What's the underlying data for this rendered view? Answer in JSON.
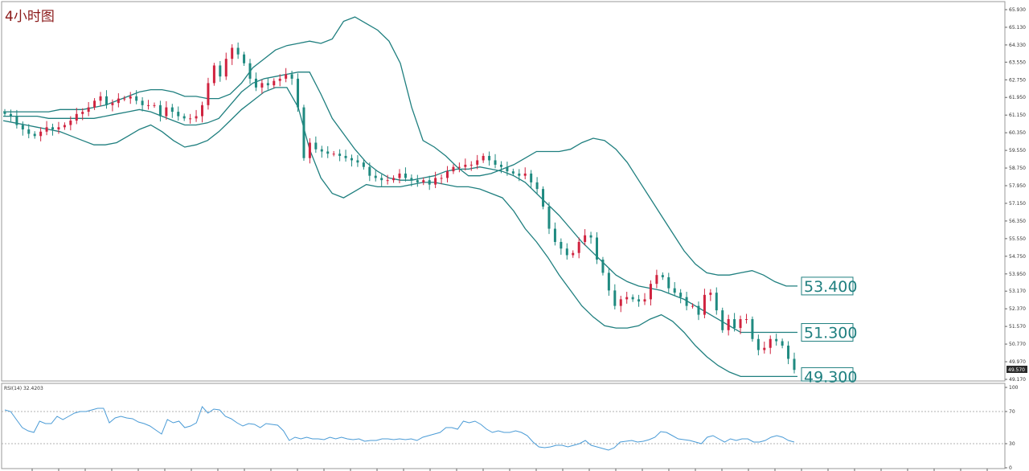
{
  "colors": {
    "up": "#d0233f",
    "down": "#1f8a80",
    "band": "#1f7f7f",
    "rsi": "#4a9bd6",
    "price_tag": "#2b2b2b",
    "level_text": "#1f7f7f"
  },
  "chart_data": {
    "type": "candlestick",
    "title": "4小时图",
    "current_price": "49.570",
    "price_ylim": [
      49.17,
      65.93
    ],
    "price_ticks": [
      "65.930",
      "65.130",
      "64.330",
      "63.550",
      "62.750",
      "61.950",
      "61.150",
      "60.350",
      "59.550",
      "58.750",
      "57.950",
      "57.150",
      "56.350",
      "55.550",
      "54.750",
      "53.950",
      "53.170",
      "52.370",
      "51.570",
      "50.770",
      "49.970",
      "49.170"
    ],
    "levels": [
      "53.400",
      "51.300",
      "49.300"
    ],
    "level_values": [
      53.4,
      51.3,
      49.3
    ],
    "ohlc_closes": [
      61.2,
      61.1,
      60.7,
      60.5,
      60.3,
      60.2,
      60.4,
      60.6,
      60.5,
      60.6,
      60.7,
      60.9,
      61.2,
      61.3,
      61.5,
      61.8,
      62.0,
      61.6,
      61.7,
      61.9,
      61.9,
      62.0,
      61.8,
      61.6,
      61.6,
      61.6,
      61.1,
      61.5,
      61.3,
      61.1,
      61.0,
      61.0,
      61.1,
      61.6,
      62.6,
      63.4,
      62.9,
      63.7,
      64.2,
      63.9,
      63.5,
      62.8,
      62.4,
      62.6,
      62.5,
      62.7,
      62.8,
      63.0,
      62.8,
      61.5,
      59.2,
      59.9,
      59.6,
      59.5,
      59.4,
      59.4,
      59.3,
      59.2,
      59.1,
      59.0,
      58.8,
      58.4,
      58.3,
      58.2,
      58.2,
      58.3,
      58.5,
      58.3,
      58.2,
      58.1,
      58.2,
      58.0,
      58.3,
      58.3,
      58.6,
      58.8,
      58.8,
      58.9,
      58.9,
      59.1,
      59.3,
      59.1,
      58.9,
      58.8,
      58.6,
      58.5,
      58.4,
      58.5,
      58.1,
      57.8,
      57.0,
      56.0,
      55.4,
      55.1,
      54.8,
      54.9,
      55.4,
      55.7,
      55.6,
      54.6,
      54.0,
      53.2,
      52.5,
      52.8,
      52.9,
      52.8,
      52.7,
      52.8,
      53.5,
      53.9,
      53.8,
      53.3,
      53.1,
      52.9,
      52.5,
      52.5,
      52.1,
      53.0,
      53.1,
      52.3,
      51.4,
      51.9,
      51.5,
      51.9,
      51.9,
      51.0,
      50.5,
      50.6,
      51.0,
      50.9,
      50.7,
      50.1,
      49.6
    ],
    "bands_upper": [
      61.3,
      61.3,
      61.3,
      61.3,
      61.3,
      61.4,
      61.4,
      61.4,
      61.5,
      61.6,
      61.8,
      62.0,
      62.2,
      62.3,
      62.3,
      62.2,
      62.0,
      62.0,
      61.9,
      61.9,
      62.1,
      62.6,
      63.3,
      63.7,
      64.1,
      64.3,
      64.4,
      64.5,
      64.4,
      64.6,
      65.4,
      65.6,
      65.3,
      65.0,
      64.5,
      63.5,
      61.5,
      60.0,
      59.7,
      59.3,
      58.8,
      58.4,
      58.4,
      58.5,
      58.7,
      58.9,
      59.2,
      59.5,
      59.5,
      59.5,
      59.6,
      59.9,
      60.1,
      60.0,
      59.6,
      59.0,
      58.2,
      57.4,
      56.6,
      55.8,
      55.0,
      54.4,
      54.0,
      53.9,
      53.9,
      54.0,
      54.1,
      53.9,
      53.6,
      53.4,
      53.4
    ],
    "bands_middle": [
      61.1,
      61.1,
      61.1,
      61.1,
      61.0,
      61.0,
      61.0,
      61.0,
      61.0,
      61.1,
      61.2,
      61.3,
      61.4,
      61.3,
      61.1,
      60.9,
      60.7,
      60.7,
      60.8,
      61.0,
      61.6,
      62.2,
      62.6,
      62.8,
      62.9,
      63.0,
      63.1,
      63.1,
      62.1,
      61.0,
      60.3,
      59.6,
      59.0,
      58.6,
      58.3,
      58.2,
      58.2,
      58.3,
      58.4,
      58.6,
      58.7,
      58.7,
      58.8,
      58.7,
      58.6,
      58.4,
      58.1,
      57.6,
      57.1,
      56.6,
      56.0,
      55.4,
      54.9,
      54.4,
      53.9,
      53.6,
      53.4,
      53.3,
      53.2,
      53.0,
      52.8,
      52.5,
      52.2,
      51.9,
      51.6,
      51.3,
      51.3,
      51.3,
      51.3,
      51.3,
      51.3
    ],
    "bands_lower": [
      60.9,
      60.8,
      60.7,
      60.6,
      60.5,
      60.4,
      60.2,
      60.0,
      59.8,
      59.8,
      59.9,
      60.2,
      60.5,
      60.7,
      60.4,
      60.0,
      59.7,
      59.8,
      60.0,
      60.4,
      60.9,
      61.4,
      61.8,
      62.2,
      62.4,
      62.4,
      61.5,
      59.6,
      58.3,
      57.6,
      57.4,
      57.7,
      58.0,
      57.9,
      57.9,
      57.9,
      58.0,
      58.1,
      58.1,
      58.0,
      57.9,
      57.9,
      57.8,
      57.6,
      57.4,
      56.8,
      56.0,
      55.4,
      54.7,
      53.9,
      53.2,
      52.5,
      52.0,
      51.6,
      51.5,
      51.5,
      51.6,
      51.9,
      52.1,
      51.8,
      51.3,
      50.7,
      50.2,
      49.8,
      49.5,
      49.3,
      49.3,
      49.3,
      49.3,
      49.3,
      49.3
    ],
    "rsi": {
      "label": "RSI(14) 32.4203",
      "ylim": [
        0,
        100
      ],
      "ticks": [
        "100",
        "70",
        "30",
        "0"
      ],
      "levels": [
        70,
        30
      ],
      "values": [
        72,
        70,
        60,
        50,
        46,
        44,
        58,
        55,
        55,
        64,
        60,
        64,
        68,
        70,
        70,
        72,
        74,
        74,
        56,
        62,
        64,
        62,
        61,
        57,
        55,
        52,
        47,
        42,
        60,
        56,
        58,
        50,
        52,
        56,
        76,
        68,
        73,
        72,
        64,
        61,
        56,
        52,
        55,
        54,
        50,
        55,
        54,
        53,
        46,
        34,
        38,
        36,
        38,
        36,
        36,
        35,
        38,
        36,
        38,
        36,
        35,
        36,
        33,
        34,
        34,
        36,
        36,
        35,
        36,
        35,
        36,
        34,
        38,
        40,
        42,
        44,
        50,
        50,
        48,
        58,
        56,
        58,
        54,
        48,
        44,
        46,
        44,
        44,
        46,
        44,
        40,
        32,
        26,
        25,
        26,
        28,
        28,
        26,
        28,
        30,
        34,
        28,
        26,
        24,
        22,
        25,
        32,
        33,
        34,
        32,
        33,
        35,
        38,
        45,
        44,
        40,
        36,
        35,
        34,
        32,
        30,
        38,
        40,
        36,
        32,
        36,
        34,
        36,
        36,
        32,
        32,
        34,
        38,
        40,
        38,
        34,
        32
      ]
    }
  }
}
